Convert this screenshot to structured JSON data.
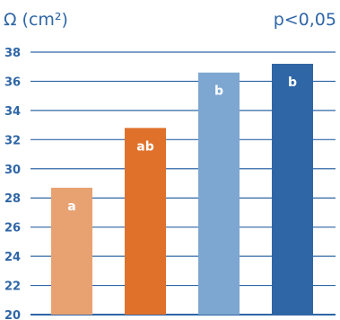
{
  "chart_data": {
    "type": "bar",
    "ylabel": "Ω (cm²)",
    "annotation": "p<0,05",
    "ylim": [
      20,
      38
    ],
    "yticks": [
      20,
      22,
      24,
      26,
      28,
      30,
      32,
      34,
      36,
      38
    ],
    "grid": true,
    "bars": [
      {
        "value": 28.7,
        "label": "a",
        "color": "#E8A272"
      },
      {
        "value": 32.8,
        "label": "ab",
        "color": "#E0712A"
      },
      {
        "value": 36.6,
        "label": "b",
        "color": "#7DA7D0"
      },
      {
        "value": 37.2,
        "label": "b",
        "color": "#2F66A6"
      }
    ],
    "colors": {
      "axis_text": "#2F66A6",
      "title_text": "#2F66A6",
      "grid": "#2F66A6",
      "bar_label": "#ffffff"
    }
  }
}
